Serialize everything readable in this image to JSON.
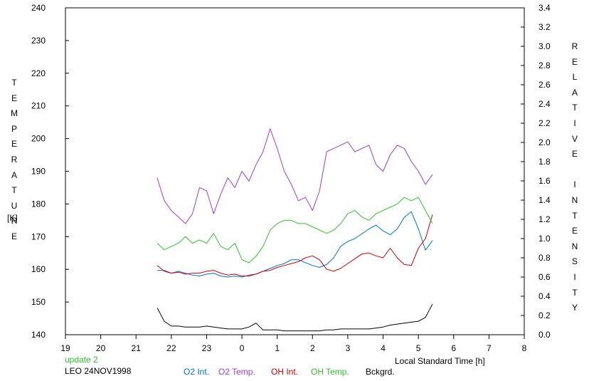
{
  "chart_data": {
    "type": "line",
    "annotation_update": "update 2",
    "station_label": "LEO 24NOV1998",
    "xlabel": "Local Standard Time [h]",
    "ylabel_left_text": "TEMPERATURE",
    "ylabel_left_unit": "[K]",
    "ylabel_right_word1": "RELATIVE",
    "ylabel_right_word2": "INTENSITY",
    "x_ticks": [
      "19",
      "20",
      "21",
      "22",
      "23",
      "0",
      "1",
      "2",
      "3",
      "4",
      "5",
      "6",
      "7",
      "8"
    ],
    "x_range_hours": [
      19,
      32
    ],
    "y_left": {
      "range": [
        140,
        240
      ],
      "ticks": [
        "140",
        "150",
        "160",
        "170",
        "180",
        "190",
        "200",
        "210",
        "220",
        "230",
        "240"
      ]
    },
    "y_right": {
      "range": [
        0.0,
        3.4
      ],
      "ticks": [
        "0.0",
        "0.2",
        "0.4",
        "0.6",
        "0.8",
        "1.0",
        "1.2",
        "1.4",
        "1.6",
        "1.8",
        "2.0",
        "2.2",
        "2.4",
        "2.6",
        "2.8",
        "3.0",
        "3.2",
        "3.4"
      ]
    },
    "series": [
      {
        "name": "O2 Int.",
        "color": "#0070d0",
        "axis": "right",
        "x": [
          21.6,
          21.8,
          22.0,
          22.2,
          22.4,
          22.6,
          22.8,
          23.0,
          23.2,
          23.4,
          23.6,
          23.8,
          24.0,
          24.2,
          24.4,
          24.6,
          24.8,
          25.0,
          25.2,
          25.4,
          25.6,
          25.8,
          26.0,
          26.2,
          26.4,
          26.6,
          26.8,
          27.0,
          27.2,
          27.4,
          27.6,
          27.8,
          28.0,
          28.2,
          28.4,
          28.6,
          28.8,
          29.0,
          29.2,
          29.4
        ],
        "y": [
          0.67,
          0.67,
          0.64,
          0.66,
          0.64,
          0.62,
          0.61,
          0.63,
          0.64,
          0.61,
          0.6,
          0.61,
          0.6,
          0.62,
          0.63,
          0.66,
          0.69,
          0.72,
          0.74,
          0.78,
          0.78,
          0.75,
          0.72,
          0.7,
          0.73,
          0.8,
          0.92,
          0.97,
          1.0,
          1.05,
          1.1,
          1.14,
          1.08,
          1.04,
          1.1,
          1.22,
          1.28,
          1.1,
          0.88,
          0.98
        ]
      },
      {
        "name": "O2 Temp.",
        "color": "#9a3fd0",
        "axis": "left",
        "x": [
          21.6,
          21.8,
          22.0,
          22.2,
          22.4,
          22.6,
          22.8,
          23.0,
          23.2,
          23.4,
          23.6,
          23.8,
          24.0,
          24.2,
          24.4,
          24.6,
          24.8,
          25.0,
          25.2,
          25.4,
          25.6,
          25.8,
          26.0,
          26.2,
          26.4,
          26.6,
          26.8,
          27.0,
          27.2,
          27.4,
          27.6,
          27.8,
          28.0,
          28.2,
          28.4,
          28.6,
          28.8,
          29.0,
          29.2,
          29.4
        ],
        "y": [
          188,
          181,
          178,
          176,
          174,
          177,
          185,
          184,
          177,
          183,
          188,
          185,
          190,
          187,
          192,
          196,
          203,
          197,
          190,
          186,
          181,
          182,
          178,
          184,
          196,
          197,
          198,
          199,
          196,
          197,
          198,
          192,
          190,
          195,
          198,
          197,
          193,
          190,
          186,
          189
        ]
      },
      {
        "name": "OH Int.",
        "color": "#d00000",
        "axis": "right",
        "x": [
          21.6,
          21.8,
          22.0,
          22.2,
          22.4,
          22.6,
          22.8,
          23.0,
          23.2,
          23.4,
          23.6,
          23.8,
          24.0,
          24.2,
          24.4,
          24.6,
          24.8,
          25.0,
          25.2,
          25.4,
          25.6,
          25.8,
          26.0,
          26.2,
          26.4,
          26.6,
          26.8,
          27.0,
          27.2,
          27.4,
          27.6,
          27.8,
          28.0,
          28.2,
          28.4,
          28.6,
          28.8,
          29.0,
          29.2,
          29.4
        ],
        "y": [
          0.72,
          0.66,
          0.64,
          0.65,
          0.63,
          0.64,
          0.64,
          0.66,
          0.67,
          0.64,
          0.62,
          0.63,
          0.61,
          0.61,
          0.63,
          0.66,
          0.67,
          0.7,
          0.72,
          0.74,
          0.76,
          0.8,
          0.82,
          0.78,
          0.68,
          0.66,
          0.69,
          0.74,
          0.79,
          0.84,
          0.85,
          0.82,
          0.8,
          0.9,
          0.8,
          0.73,
          0.72,
          0.9,
          1.0,
          1.25
        ]
      },
      {
        "name": "OH Temp.",
        "color": "#30c030",
        "axis": "left",
        "x": [
          21.6,
          21.8,
          22.0,
          22.2,
          22.4,
          22.6,
          22.8,
          23.0,
          23.2,
          23.4,
          23.6,
          23.8,
          24.0,
          24.2,
          24.4,
          24.6,
          24.8,
          25.0,
          25.2,
          25.4,
          25.6,
          25.8,
          26.0,
          26.2,
          26.4,
          26.6,
          26.8,
          27.0,
          27.2,
          27.4,
          27.6,
          27.8,
          28.0,
          28.2,
          28.4,
          28.6,
          28.8,
          29.0,
          29.2,
          29.4
        ],
        "y": [
          168,
          166,
          167,
          168,
          170,
          168,
          169,
          168,
          171,
          167,
          166,
          168,
          163,
          162,
          164,
          167,
          172,
          174,
          175,
          175,
          174,
          174,
          173,
          172,
          171,
          172,
          174,
          177,
          178,
          176,
          175,
          177,
          178,
          179,
          180,
          182,
          181,
          182,
          178,
          174
        ]
      },
      {
        "name": "Bckgrd.",
        "color": "#000000",
        "axis": "right",
        "x": [
          21.6,
          21.8,
          22.0,
          22.2,
          22.4,
          22.6,
          22.8,
          23.0,
          23.2,
          23.4,
          23.6,
          23.8,
          24.0,
          24.2,
          24.4,
          24.6,
          24.8,
          25.0,
          25.2,
          25.4,
          25.6,
          25.8,
          26.0,
          26.2,
          26.4,
          26.6,
          26.8,
          27.0,
          27.2,
          27.4,
          27.6,
          27.8,
          28.0,
          28.2,
          28.4,
          28.6,
          28.8,
          29.0,
          29.2,
          29.4
        ],
        "y": [
          0.28,
          0.14,
          0.09,
          0.09,
          0.08,
          0.08,
          0.08,
          0.09,
          0.08,
          0.07,
          0.06,
          0.06,
          0.06,
          0.08,
          0.12,
          0.05,
          0.05,
          0.05,
          0.04,
          0.04,
          0.04,
          0.04,
          0.04,
          0.04,
          0.05,
          0.05,
          0.06,
          0.06,
          0.06,
          0.06,
          0.06,
          0.07,
          0.08,
          0.1,
          0.11,
          0.12,
          0.13,
          0.14,
          0.18,
          0.32
        ]
      }
    ]
  }
}
